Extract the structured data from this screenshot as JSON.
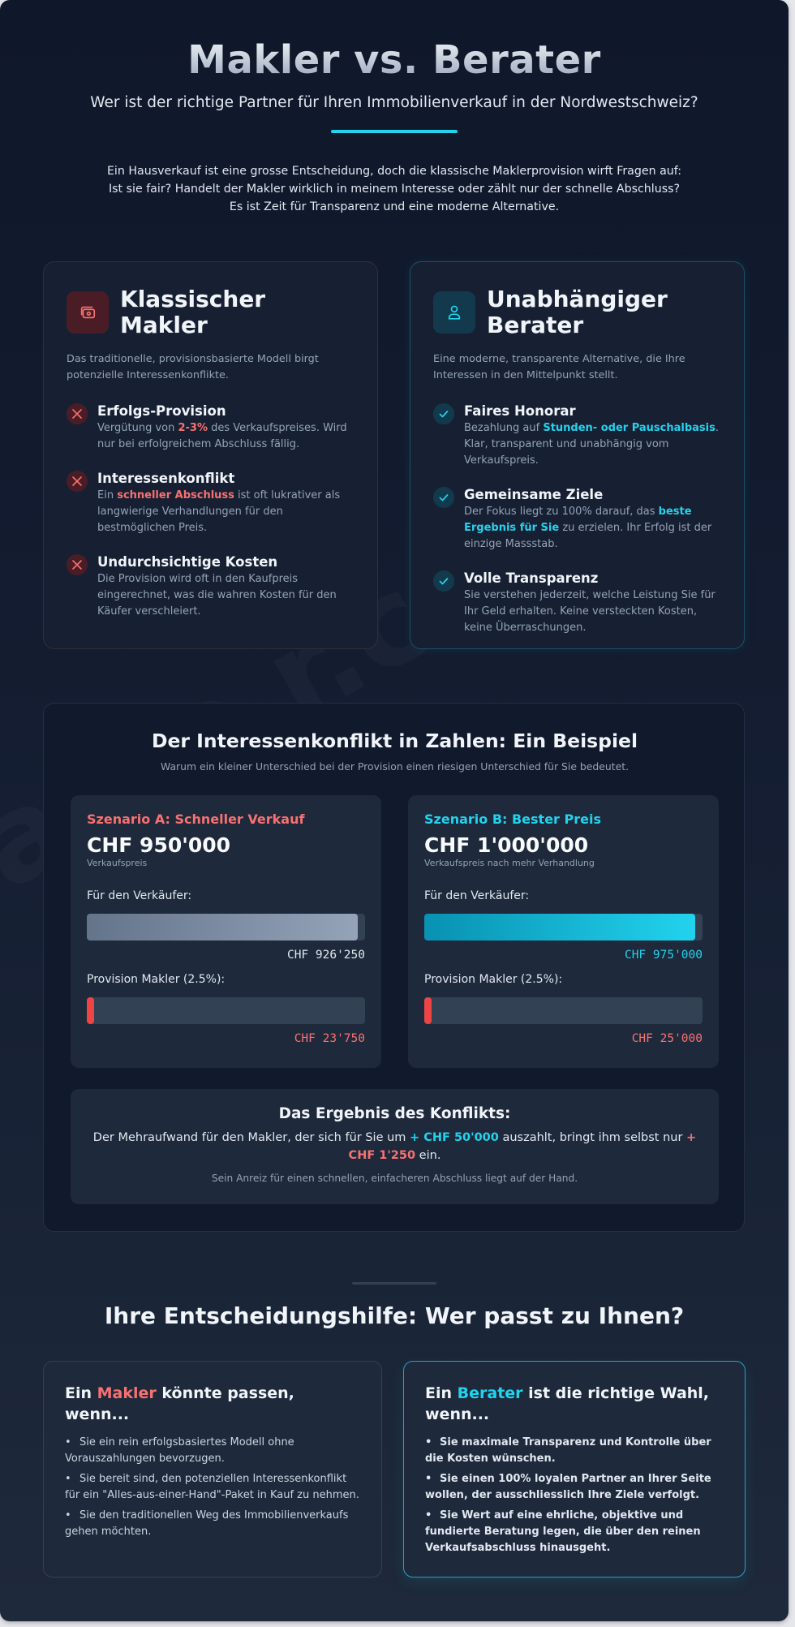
{
  "header": {
    "title": "Makler vs. Berater",
    "subtitle": "Wer ist der richtige Partner für Ihren Immobilienverkauf in der Nordwestschweiz?",
    "intro": "Ein Hausverkauf ist eine grosse Entscheidung, doch die klassische Maklerprovision wirft Fragen auf: Ist sie fair? Handelt der Makler wirklich in meinem Interesse oder zählt nur der schnelle Abschluss? Es ist Zeit für Transparenz und eine moderne Alternative."
  },
  "colors": {
    "accent_cyan": "#22d3ee",
    "accent_red": "#f87171",
    "commission_bar": "#ef4444",
    "background": "#0f172a",
    "card": "#1e293b"
  },
  "comparison": {
    "makler": {
      "icon": "money-bills-icon",
      "title": "Klassischer Makler",
      "description": "Das traditionelle, provisionsbasierte Modell birgt potenzielle Interessenkonflikte.",
      "features": [
        {
          "icon": "x-icon",
          "title": "Erfolgs-Provision",
          "text_before": "Vergütung von ",
          "highlight": "2-3%",
          "text_after": " des Verkaufspreises. Wird nur bei erfolgreichem Abschluss fällig."
        },
        {
          "icon": "x-icon",
          "title": "Interessenkonflikt",
          "text_before": "Ein ",
          "highlight": "schneller Abschluss",
          "text_after": " ist oft lukrativer als langwierige Verhandlungen für den bestmöglichen Preis."
        },
        {
          "icon": "x-icon",
          "title": "Undurchsichtige Kosten",
          "text_before": "Die Provision wird oft in den Kaufpreis eingerechnet, was die wahren Kosten für den Käufer verschleiert.",
          "highlight": "",
          "text_after": ""
        }
      ]
    },
    "berater": {
      "icon": "user-icon",
      "title": "Unabhängiger Berater",
      "description": "Eine moderne, transparente Alternative, die Ihre Interessen in den Mittelpunkt stellt.",
      "features": [
        {
          "icon": "check-icon",
          "title": "Faires Honorar",
          "text_before": "Bezahlung auf ",
          "highlight": "Stunden- oder Pauschalbasis",
          "text_after": ". Klar, transparent und unabhängig vom Verkaufspreis."
        },
        {
          "icon": "check-icon",
          "title": "Gemeinsame Ziele",
          "text_before": "Der Fokus liegt zu 100% darauf, das ",
          "highlight": "beste Ergebnis für Sie",
          "text_after": " zu erzielen. Ihr Erfolg ist der einzige Massstab."
        },
        {
          "icon": "check-icon",
          "title": "Volle Transparenz",
          "text_before": "Sie verstehen jederzeit, welche Leistung Sie für Ihr Geld erhalten. Keine versteckten Kosten, keine Überraschungen.",
          "highlight": "",
          "text_after": ""
        }
      ]
    }
  },
  "conflict": {
    "title": "Der Interessenkonflikt in Zahlen: Ein Beispiel",
    "subtitle": "Warum ein kleiner Unterschied bei der Provision einen riesigen Unterschied für Sie bedeutet.",
    "scenarios": [
      {
        "label": "Szenario A: Schneller Verkauf",
        "price": "CHF 950'000",
        "price_note": "Verkaufspreis",
        "seller_label": "Für den Verkäufer:",
        "seller_value": "CHF 926'250",
        "seller_bar_pct": "97.5%",
        "commission_label": "Provision Makler (2.5%):",
        "commission_value": "CHF 23'750",
        "commission_bar_pct": "2.5%"
      },
      {
        "label": "Szenario B: Bester Preis",
        "price": "CHF 1'000'000",
        "price_note": "Verkaufspreis nach mehr Verhandlung",
        "seller_label": "Für den Verkäufer:",
        "seller_value": "CHF 975'000",
        "seller_bar_pct": "97.5%",
        "commission_label": "Provision Makler (2.5%):",
        "commission_value": "CHF 25'000",
        "commission_bar_pct": "2.5%"
      }
    ],
    "result": {
      "title": "Das Ergebnis des Konflikts:",
      "text_1": "Der Mehraufwand für den Makler, der sich für Sie um ",
      "gain_seller": "+ CHF 50'000",
      "text_2": " auszahlt, bringt ihm selbst nur ",
      "gain_makler": "+ CHF 1'250",
      "text_3": " ein.",
      "note": "Sein Anreiz für einen schnellen, einfacheren Abschluss liegt auf der Hand."
    }
  },
  "decision": {
    "title": "Ihre Entscheidungshilfe: Wer passt zu Ihnen?",
    "makler": {
      "title_pre": "Ein ",
      "title_hl": "Makler",
      "title_post": " könnte passen, wenn...",
      "items": [
        "Sie ein rein erfolgsbasiertes Modell ohne Vorauszahlungen bevorzugen.",
        "Sie bereit sind, den potenziellen Interessenkonflikt für ein \"Alles-aus-einer-Hand\"-Paket in Kauf zu nehmen.",
        "Sie den traditionellen Weg des Immobilienverkaufs gehen möchten."
      ]
    },
    "berater": {
      "title_pre": "Ein ",
      "title_hl": "Berater",
      "title_post": " ist die richtige Wahl, wenn...",
      "items": [
        "Sie maximale Transparenz und Kontrolle über die Kosten wünschen.",
        "Sie einen 100% loyalen Partner an Ihrer Seite wollen, der ausschliesslich Ihre Ziele verfolgt.",
        "Sie Wert auf eine ehrliche, objektive und fundierte Beratung legen, die über den reinen Verkaufsabschluss hinausgeht."
      ]
    },
    "bullet": "•"
  }
}
